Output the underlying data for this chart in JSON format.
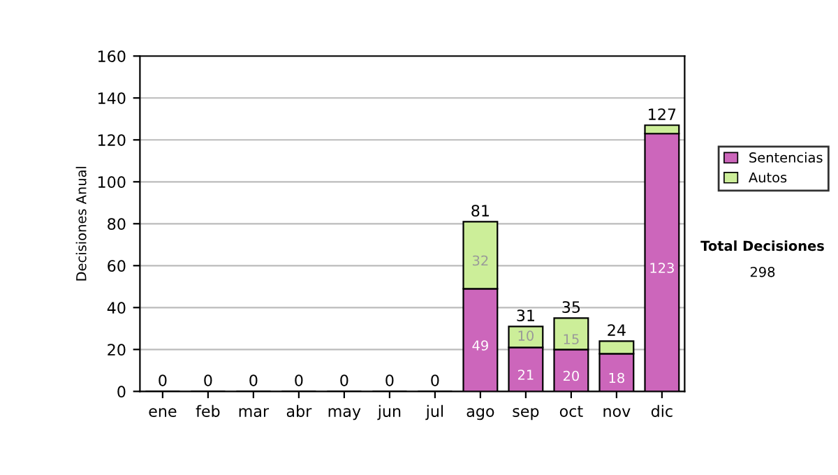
{
  "chart_data": {
    "type": "bar",
    "stacked": true,
    "ylabel": "Decisiones Anual",
    "categories": [
      "ene",
      "feb",
      "mar",
      "abr",
      "may",
      "jun",
      "jul",
      "ago",
      "sep",
      "oct",
      "nov",
      "dic"
    ],
    "series": [
      {
        "name": "Sentencias",
        "color": "#cc66bb",
        "values": [
          0,
          0,
          0,
          0,
          0,
          0,
          0,
          49,
          21,
          20,
          18,
          123
        ],
        "value_labels": [
          null,
          null,
          null,
          null,
          null,
          null,
          null,
          "49",
          "21",
          "20",
          "18",
          "123"
        ]
      },
      {
        "name": "Autos",
        "color": "#ccee99",
        "values": [
          0,
          0,
          0,
          0,
          0,
          0,
          0,
          32,
          10,
          15,
          6,
          4
        ],
        "value_labels": [
          null,
          null,
          null,
          null,
          null,
          null,
          null,
          "32",
          "10",
          "15",
          null,
          null
        ]
      }
    ],
    "totals": [
      "0",
      "0",
      "0",
      "0",
      "0",
      "0",
      "0",
      "81",
      "31",
      "35",
      "24",
      "127"
    ],
    "ylim": [
      0,
      160
    ],
    "yticks": [
      0,
      20,
      40,
      60,
      80,
      100,
      120,
      140,
      160
    ],
    "grid": "y",
    "legend": "right",
    "annotations": [
      "Total Decisiones",
      "298"
    ]
  }
}
